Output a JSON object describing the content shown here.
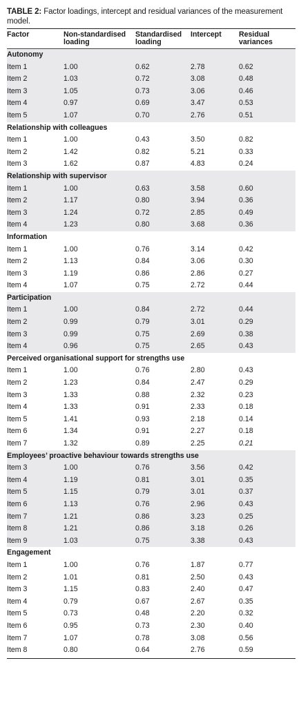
{
  "caption": {
    "label": "TABLE 2:",
    "text": " Factor loadings, intercept and residual variances of the measurement model."
  },
  "headers": [
    "Factor",
    "Non-standardised loading",
    "Standardised loading",
    "Intercept",
    "Residual variances"
  ],
  "groups": [
    {
      "name": "Autonomy",
      "shaded": true,
      "rows": [
        [
          "Item 1",
          "1.00",
          "0.62",
          "2.78",
          "0.62"
        ],
        [
          "Item 2",
          "1.03",
          "0.72",
          "3.08",
          "0.48"
        ],
        [
          "Item 3",
          "1.05",
          "0.73",
          "3.06",
          "0.46"
        ],
        [
          "Item 4",
          "0.97",
          "0.69",
          "3.47",
          "0.53"
        ],
        [
          "Item 5",
          "1.07",
          "0.70",
          "2.76",
          "0.51"
        ]
      ]
    },
    {
      "name": "Relationship with colleagues",
      "shaded": false,
      "rows": [
        [
          "Item 1",
          "1.00",
          "0.43",
          "3.50",
          "0.82"
        ],
        [
          "Item 2",
          "1.42",
          "0.82",
          "5.21",
          "0.33"
        ],
        [
          "Item 3",
          "1.62",
          "0.87",
          "4.83",
          "0.24"
        ]
      ]
    },
    {
      "name": "Relationship with supervisor",
      "shaded": true,
      "rows": [
        [
          "Item 1",
          "1.00",
          "0.63",
          "3.58",
          "0.60"
        ],
        [
          "Item 2",
          "1.17",
          "0.80",
          "3.94",
          "0.36"
        ],
        [
          "Item 3",
          "1.24",
          "0.72",
          "2.85",
          "0.49"
        ],
        [
          "Item 4",
          "1.23",
          "0.80",
          "3.68",
          "0.36"
        ]
      ]
    },
    {
      "name": "Information",
      "shaded": false,
      "rows": [
        [
          "Item 1",
          "1.00",
          "0.76",
          "3.14",
          "0.42"
        ],
        [
          "Item 2",
          "1.13",
          "0.84",
          "3.06",
          "0.30"
        ],
        [
          "Item 3",
          "1.19",
          "0.86",
          "2.86",
          "0.27"
        ],
        [
          "Item 4",
          "1.07",
          "0.75",
          "2.72",
          "0.44"
        ]
      ]
    },
    {
      "name": "Participation",
      "shaded": true,
      "rows": [
        [
          "Item 1",
          "1.00",
          "0.84",
          "2.72",
          "0.44"
        ],
        [
          "Item 2",
          "0.99",
          "0.79",
          "3.01",
          "0.29"
        ],
        [
          "Item 3",
          "0.99",
          "0.75",
          "2.69",
          "0.38"
        ],
        [
          "Item 4",
          "0.96",
          "0.75",
          "2.65",
          "0.43"
        ]
      ]
    },
    {
      "name": "Perceived organisational support for strengths use",
      "shaded": false,
      "rows": [
        [
          "Item 1",
          "1.00",
          "0.76",
          "2.80",
          "0.43"
        ],
        [
          "Item 2",
          "1.23",
          "0.84",
          "2.47",
          "0.29"
        ],
        [
          "Item 3",
          "1.33",
          "0.88",
          "2.32",
          "0.23"
        ],
        [
          "Item 4",
          "1.33",
          "0.91",
          "2.33",
          "0.18"
        ],
        [
          "Item 5",
          "1.41",
          "0.93",
          "2.18",
          "0.14"
        ],
        [
          "Item 6",
          "1.34",
          "0.91",
          "2.27",
          "0.18"
        ],
        [
          "Item 7",
          "1.32",
          "0.89",
          "2.25",
          "0.21"
        ]
      ]
    },
    {
      "name": "Employees’ proactive behaviour towards strengths use",
      "shaded": true,
      "rows": [
        [
          "Item 3",
          "1.00",
          "0.76",
          "3.56",
          "0.42"
        ],
        [
          "Item 4",
          "1.19",
          "0.81",
          "3.01",
          "0.35"
        ],
        [
          "Item 5",
          "1.15",
          "0.79",
          "3.01",
          "0.37"
        ],
        [
          "Item 6",
          "1.13",
          "0.76",
          "2.96",
          "0.43"
        ],
        [
          "Item 7",
          "1.21",
          "0.86",
          "3.23",
          "0.25"
        ],
        [
          "Item 8",
          "1.21",
          "0.86",
          "3.18",
          "0.26"
        ],
        [
          "Item 9",
          "1.03",
          "0.75",
          "3.38",
          "0.43"
        ]
      ]
    },
    {
      "name": "Engagement",
      "shaded": false,
      "rows": [
        [
          "Item 1",
          "1.00",
          "0.76",
          "1.87",
          "0.77"
        ],
        [
          "Item 2",
          "1.01",
          "0.81",
          "2.50",
          "0.43"
        ],
        [
          "Item 3",
          "1.15",
          "0.83",
          "2.40",
          "0.47"
        ],
        [
          "Item 4",
          "0.79",
          "0.67",
          "2.67",
          "0.35"
        ],
        [
          "Item 5",
          "0.73",
          "0.48",
          "2.20",
          "0.32"
        ],
        [
          "Item 6",
          "0.95",
          "0.73",
          "2.30",
          "0.40"
        ],
        [
          "Item 7",
          "1.07",
          "0.78",
          "3.08",
          "0.56"
        ],
        [
          "Item 8",
          "0.80",
          "0.64",
          "2.76",
          "0.59"
        ]
      ]
    }
  ]
}
